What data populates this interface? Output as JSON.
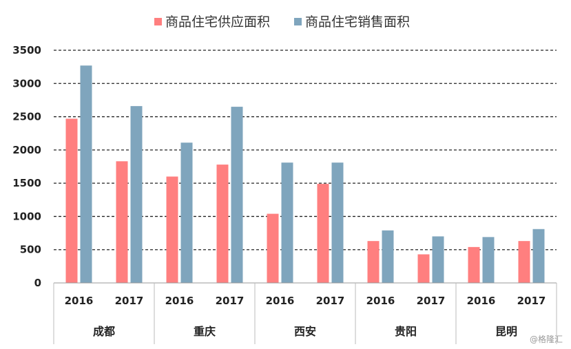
{
  "chart_data": {
    "type": "bar",
    "title": "",
    "xlabel": "",
    "ylabel": "",
    "ylim": [
      0,
      3500
    ],
    "yticks": [
      0,
      500,
      1000,
      1500,
      2000,
      2500,
      3000,
      3500
    ],
    "grid": "dashed",
    "legend": "top",
    "groups": [
      {
        "city": "成都",
        "years": [
          "2016",
          "2017"
        ]
      },
      {
        "city": "重庆",
        "years": [
          "2016",
          "2017"
        ]
      },
      {
        "city": "西安",
        "years": [
          "2016",
          "2017"
        ]
      },
      {
        "city": "贵阳",
        "years": [
          "2016",
          "2017"
        ]
      },
      {
        "city": "昆明",
        "years": [
          "2016",
          "2017"
        ]
      }
    ],
    "series": [
      {
        "name": "商品住宅供应面积",
        "color": "#ff7f7f",
        "values": [
          2470,
          1830,
          1600,
          1780,
          1040,
          1490,
          630,
          430,
          540,
          630
        ]
      },
      {
        "name": "商品住宅销售面积",
        "color": "#7fa5bd",
        "values": [
          3270,
          2660,
          2110,
          2650,
          1810,
          1810,
          790,
          700,
          690,
          810
        ]
      }
    ]
  },
  "watermark": "@格隆汇"
}
